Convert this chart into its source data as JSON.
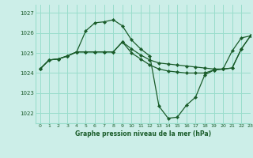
{
  "bg_color": "#cceee8",
  "grid_color": "#99ddcc",
  "line_color": "#1a5c2a",
  "marker_color": "#1a5c2a",
  "xlabel": "Graphe pression niveau de la mer (hPa)",
  "xlim": [
    -0.5,
    23
  ],
  "ylim": [
    1021.5,
    1027.4
  ],
  "yticks": [
    1022,
    1023,
    1024,
    1025,
    1026,
    1027
  ],
  "xticks": [
    0,
    1,
    2,
    3,
    4,
    5,
    6,
    7,
    8,
    9,
    10,
    11,
    12,
    13,
    14,
    15,
    16,
    17,
    18,
    19,
    20,
    21,
    22,
    23
  ],
  "series": [
    [
      1024.2,
      1024.65,
      1024.7,
      1024.85,
      1025.05,
      1026.1,
      1026.5,
      1026.55,
      1026.65,
      1026.35,
      1025.65,
      1025.2,
      1024.85,
      1022.35,
      1021.75,
      1021.8,
      1022.4,
      1022.8,
      1023.9,
      1024.15,
      1024.2,
      1025.1,
      1025.75,
      1025.85
    ],
    [
      1024.2,
      1024.65,
      1024.7,
      1024.85,
      1025.05,
      1025.05,
      1025.05,
      1025.05,
      1025.05,
      1025.55,
      1025.2,
      1024.9,
      1024.65,
      1024.5,
      1024.45,
      1024.4,
      1024.35,
      1024.3,
      1024.25,
      1024.2,
      1024.2,
      1024.25,
      1025.2,
      1025.85
    ],
    [
      1024.2,
      1024.65,
      1024.7,
      1024.85,
      1025.05,
      1025.05,
      1025.05,
      1025.05,
      1025.05,
      1025.55,
      1025.0,
      1024.7,
      1024.4,
      1024.2,
      1024.1,
      1024.05,
      1024.0,
      1024.0,
      1024.0,
      1024.15,
      1024.2,
      1024.25,
      1025.2,
      1025.85
    ]
  ]
}
